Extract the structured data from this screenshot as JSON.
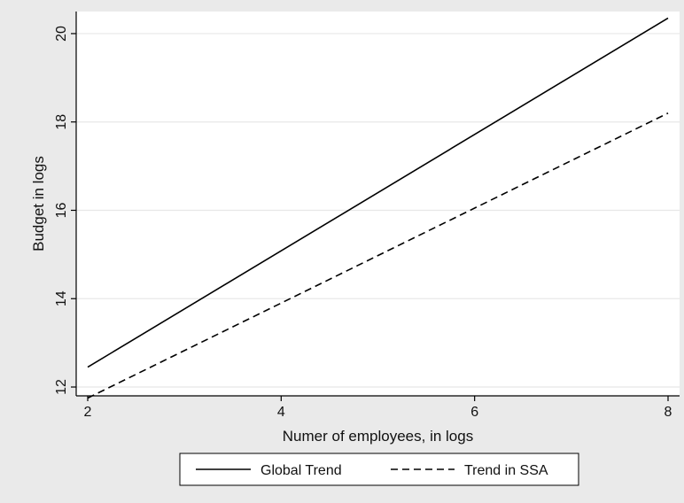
{
  "chart_data": {
    "type": "line",
    "xlabel": "Numer of employees, in logs",
    "ylabel": "Budget in logs",
    "xlim": [
      2,
      8
    ],
    "ylim": [
      11.8,
      20.5
    ],
    "xticks": [
      2,
      4,
      6,
      8
    ],
    "yticks": [
      12,
      14,
      16,
      18,
      20
    ],
    "grid": true,
    "legend_position": "bottom",
    "series": [
      {
        "name": "Global Trend",
        "style": "solid",
        "color": "#000000",
        "x": [
          2,
          8
        ],
        "y": [
          12.45,
          20.35
        ]
      },
      {
        "name": "Trend in SSA",
        "style": "dashed",
        "color": "#000000",
        "x": [
          2,
          8
        ],
        "y": [
          11.75,
          18.2
        ]
      }
    ]
  },
  "colors": {
    "background": "#eaeaea",
    "plot_background": "#ffffff",
    "grid": "#e8e8e8",
    "axis": "#000000"
  }
}
